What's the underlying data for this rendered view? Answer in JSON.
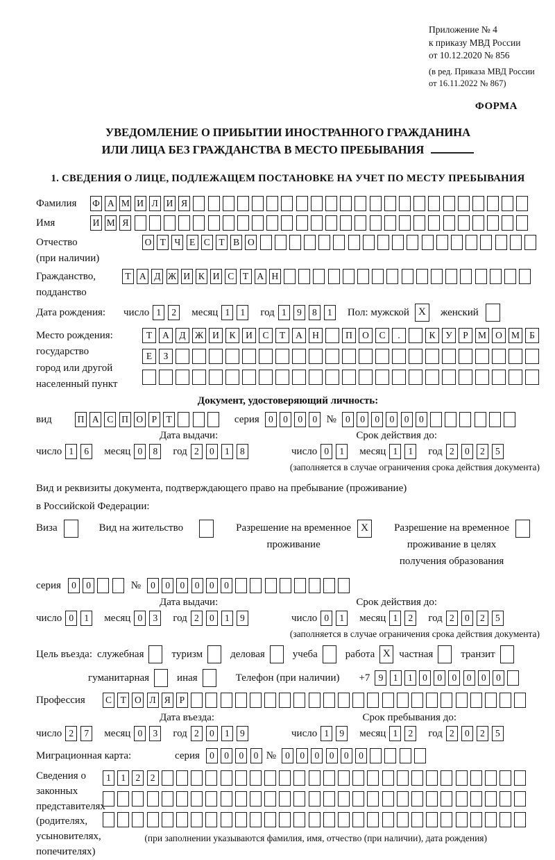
{
  "marks": {
    "checked": "X"
  },
  "date_labels": {
    "day": "число",
    "month": "месяц",
    "year": "год"
  },
  "header": {
    "appendix_lines": [
      "Приложение № 4",
      "к приказу МВД России",
      "от 10.12.2020 № 856"
    ],
    "amendment_lines": [
      "(в ред. Приказа МВД России",
      "от 16.11.2022 № 867)"
    ],
    "form_label": "ФОРМА"
  },
  "title": {
    "line1": "УВЕДОМЛЕНИЕ О ПРИБЫТИИ ИНОСТРАННОГО ГРАЖДАНИНА",
    "line2": "ИЛИ ЛИЦА БЕЗ ГРАЖДАНСТВА В МЕСТО ПРЕБЫВАНИЯ"
  },
  "section1": {
    "heading": "1. СВЕДЕНИЯ О ЛИЦЕ, ПОДЛЕЖАЩЕМ ПОСТАНОВКЕ НА УЧЕТ ПО МЕСТУ ПРЕБЫВАНИЯ",
    "surname": {
      "label": "Фамилия",
      "value": "ФАМИЛИЯ",
      "cells": 30
    },
    "name": {
      "label": "Имя",
      "value": "ИМЯ",
      "cells": 30
    },
    "patronymic": {
      "label": "Отчество",
      "sublabel": "(при наличии)",
      "value": "ОТЧЕСТВО",
      "cells": 27
    },
    "citizenship": {
      "label": "Гражданство,",
      "sublabel": "подданство",
      "value": "ТАДЖИКИСТАН",
      "cells": 28
    },
    "birth_date": {
      "label": "Дата рождения:",
      "day": {
        "value": "12",
        "cells": 2
      },
      "month": {
        "value": "11",
        "cells": 2
      },
      "year": {
        "value": "1981",
        "cells": 4
      }
    },
    "gender": {
      "male_label": "Пол: мужской",
      "male_checked": true,
      "female_label": "женский",
      "female_checked": false
    },
    "birth_place": {
      "label_lines": [
        "Место рождения:",
        "государство",
        "город или другой",
        "населенный пункт"
      ],
      "rows": [
        {
          "value": "ТАДЖИКИСТАН ПОС. КУРМОМБ",
          "cells": 24
        },
        {
          "value": "ЕЗ",
          "cells": 24
        },
        {
          "value": "",
          "cells": 24
        }
      ]
    }
  },
  "identity_doc": {
    "heading": "Документ, удостоверяющий личность:",
    "kind_label": "вид",
    "kind": {
      "value": "ПАСПОРТ",
      "cells": 10
    },
    "series_label": "серия",
    "series": {
      "value": "0000",
      "cells": 4
    },
    "number_label": "№",
    "number": {
      "value": "000000",
      "cells": 12
    },
    "issue_heading": "Дата выдачи:",
    "issue": {
      "day": {
        "value": "16",
        "cells": 2
      },
      "month": {
        "value": "08",
        "cells": 2
      },
      "year": {
        "value": "2018",
        "cells": 4
      }
    },
    "expiry_heading": "Срок действия до:",
    "expiry": {
      "day": {
        "value": "01",
        "cells": 2
      },
      "month": {
        "value": "11",
        "cells": 2
      },
      "year": {
        "value": "2025",
        "cells": 4
      }
    },
    "note": "(заполняется в случае ограничения срока действия документа)"
  },
  "residence_doc": {
    "intro_line1": "Вид и реквизиты документа, подтверждающего право на пребывание (проживание)",
    "intro_line2": "в Российской Федерации:",
    "options": [
      {
        "lines": [
          "Виза"
        ],
        "checked": false
      },
      {
        "lines": [
          "Вид на жительство"
        ],
        "checked": false
      },
      {
        "lines": [
          "Разрешение на временное",
          "проживание"
        ],
        "checked": true
      },
      {
        "lines": [
          "Разрешение на временное",
          "проживание в целях",
          "получения образования"
        ],
        "checked": false
      }
    ],
    "series_label": "серия",
    "series": {
      "value": "00",
      "cells": 4
    },
    "number_label": "№",
    "number": {
      "value": "000000",
      "cells": 14
    },
    "issue_heading": "Дата выдачи:",
    "issue": {
      "day": {
        "value": "01",
        "cells": 2
      },
      "month": {
        "value": "03",
        "cells": 2
      },
      "year": {
        "value": "2019",
        "cells": 4
      }
    },
    "expiry_heading": "Срок действия до:",
    "expiry": {
      "day": {
        "value": "01",
        "cells": 2
      },
      "month": {
        "value": "12",
        "cells": 2
      },
      "year": {
        "value": "2025",
        "cells": 4
      }
    },
    "note": "(заполняется в случае ограничения срока действия документа)"
  },
  "visit": {
    "purpose_label": "Цель въезда:",
    "purpose_options": [
      {
        "label": "служебная",
        "checked": false
      },
      {
        "label": "туризм",
        "checked": false
      },
      {
        "label": "деловая",
        "checked": false
      },
      {
        "label": "учеба",
        "checked": false
      },
      {
        "label": "работа",
        "checked": true
      },
      {
        "label": "частная",
        "checked": false
      },
      {
        "label": "транзит",
        "checked": false
      }
    ],
    "purpose_options2": [
      {
        "label": "гуманитарная",
        "checked": false
      },
      {
        "label": "иная",
        "checked": false
      }
    ],
    "phone_label": "Телефон (при наличии)",
    "phone_prefix": "+7",
    "phone": {
      "value": "911000000",
      "cells": 10
    },
    "profession_label": "Профессия",
    "profession": {
      "value": "СТОЛЯР",
      "cells": 29
    },
    "entry_heading": "Дата въезда:",
    "entry": {
      "day": {
        "value": "27",
        "cells": 2
      },
      "month": {
        "value": "03",
        "cells": 2
      },
      "year": {
        "value": "2019",
        "cells": 4
      }
    },
    "stay_heading": "Срок пребывания до:",
    "stay": {
      "day": {
        "value": "19",
        "cells": 2
      },
      "month": {
        "value": "12",
        "cells": 2
      },
      "year": {
        "value": "2025",
        "cells": 4
      }
    }
  },
  "migration_card": {
    "label": "Миграционная карта:",
    "series_label": "серия",
    "series": {
      "value": "0000",
      "cells": 4
    },
    "number_label": "№",
    "number": {
      "value": "000000",
      "cells": 10
    }
  },
  "representatives": {
    "label_lines": [
      "Сведения о",
      "законных",
      "представителях",
      "(родителях,",
      "усыновителях,",
      "попечителях)"
    ],
    "rows": [
      {
        "value": "1122",
        "cells": 29
      },
      {
        "value": "",
        "cells": 29
      },
      {
        "value": "",
        "cells": 29
      }
    ],
    "note": "(при заполнении указываются фамилия, имя, отчество (при наличии), дата рождения)"
  }
}
